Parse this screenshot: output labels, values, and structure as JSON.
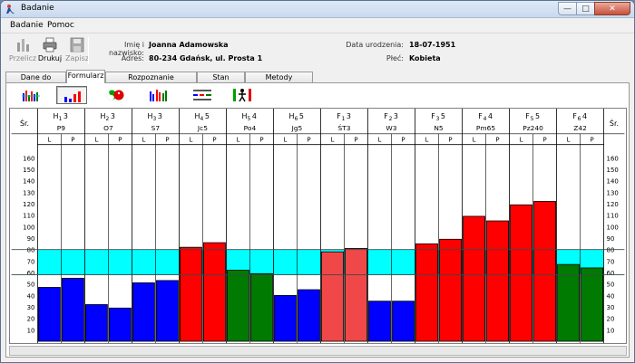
{
  "window": {
    "title": "Badanie"
  },
  "menu": {
    "items": [
      "Badanie",
      "Pomoc"
    ]
  },
  "toolbar": {
    "buttons": [
      {
        "label": "Przelicz",
        "icon": "recalc-chart-icon",
        "enabled": false
      },
      {
        "label": "Drukuj",
        "icon": "printer-icon",
        "enabled": true
      },
      {
        "label": "Zapisz",
        "icon": "floppy-disk-icon",
        "enabled": false
      }
    ]
  },
  "patient": {
    "name_label": "Imię i nazwisko:",
    "name": "Joanna Adamowska",
    "address_label": "Adres:",
    "address": "80-234 Gdańsk, ul. Prosta 1",
    "birth_label": "Data urodzenia:",
    "birth": "18-07-1951",
    "sex_label": "Płeć:",
    "sex": "Kobieta"
  },
  "tabs": [
    {
      "label": "Dane do obliczeń",
      "active": false
    },
    {
      "label": "Formularz",
      "active": true
    },
    {
      "label": "Rozpoznanie energetyczne",
      "active": false
    },
    {
      "label": "Stan zdrowia",
      "active": false
    },
    {
      "label": "Metody akupunktury",
      "active": false
    }
  ],
  "chart_tools": [
    {
      "icon": "all-channels-chart-icon",
      "active": false
    },
    {
      "icon": "bar-chart-view-icon",
      "active": true
    },
    {
      "icon": "yin-yang-icon",
      "active": false
    },
    {
      "icon": "grouped-bars-icon",
      "active": false
    },
    {
      "icon": "table-view-icon",
      "active": false
    },
    {
      "icon": "body-figure-icon",
      "active": false
    }
  ],
  "colors": {
    "blue": "#0000ff",
    "green": "#007a00",
    "red": "#ff0000",
    "light_red": "#f04848",
    "norm_band": "#00ffff"
  },
  "chart_data": {
    "type": "bar",
    "side_label": "Śr.",
    "ylim": [
      0,
      170
    ],
    "norm_band": [
      58,
      80
    ],
    "y_ticks": [
      160,
      150,
      140,
      130,
      120,
      110,
      100,
      90,
      80,
      70,
      60,
      50,
      40,
      30,
      20,
      10
    ],
    "sub_labels": [
      "L",
      "P"
    ],
    "channels": [
      {
        "code": "H",
        "sub": "1",
        "sup": "3",
        "point": "P9",
        "values": [
          47,
          55
        ],
        "color": "blue"
      },
      {
        "code": "H",
        "sub": "2",
        "sup": "3",
        "point": "O7",
        "values": [
          32,
          29
        ],
        "color": "blue"
      },
      {
        "code": "H",
        "sub": "3",
        "sup": "3",
        "point": "S7",
        "values": [
          51,
          53
        ],
        "color": "blue"
      },
      {
        "code": "H",
        "sub": "4",
        "sup": "5",
        "point": "Jc5",
        "values": [
          82,
          86
        ],
        "color": "red"
      },
      {
        "code": "H",
        "sub": "5",
        "sup": "4",
        "point": "Po4",
        "values": [
          62,
          59
        ],
        "color": "green"
      },
      {
        "code": "H",
        "sub": "6",
        "sup": "5",
        "point": "Jg5",
        "values": [
          40,
          45
        ],
        "color": "blue"
      },
      {
        "code": "F",
        "sub": "1",
        "sup": "3",
        "point": "ŚT3",
        "values": [
          78,
          81
        ],
        "color": "light_red"
      },
      {
        "code": "F",
        "sub": "2",
        "sup": "3",
        "point": "W3",
        "values": [
          35,
          35
        ],
        "color": "blue"
      },
      {
        "code": "F",
        "sub": "3",
        "sup": "5",
        "point": "N5",
        "values": [
          85,
          89
        ],
        "color": "red"
      },
      {
        "code": "F",
        "sub": "4",
        "sup": "4",
        "point": "Pm65",
        "values": [
          109,
          105
        ],
        "color": "red"
      },
      {
        "code": "F",
        "sub": "5",
        "sup": "5",
        "point": "Pz240",
        "values": [
          119,
          122
        ],
        "color": "red"
      },
      {
        "code": "F",
        "sub": "6",
        "sup": "4",
        "point": "Z42",
        "values": [
          67,
          64
        ],
        "color": "green"
      }
    ]
  }
}
